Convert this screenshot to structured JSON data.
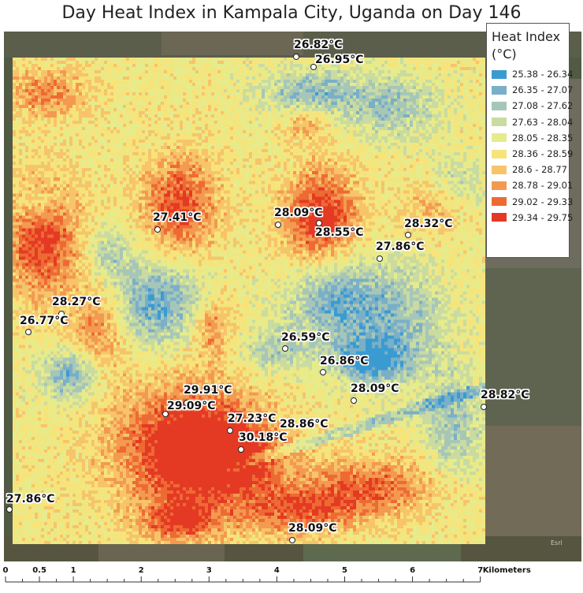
{
  "title": "Day Heat Index in Kampala City, Uganda on Day 146",
  "legend": {
    "title_line1": "Heat Index",
    "title_line2": "(°C)",
    "classes": [
      {
        "label": "25.38 - 26.34",
        "color": "#3a9bd1"
      },
      {
        "label": "26.35 - 27.07",
        "color": "#79afc8"
      },
      {
        "label": "27.08 - 27.62",
        "color": "#a6c6b8"
      },
      {
        "label": "27.63 - 28.04",
        "color": "#c9dba0"
      },
      {
        "label": "28.05 - 28.35",
        "color": "#e6eb8c"
      },
      {
        "label": "28.36 - 28.59",
        "color": "#f6e47b"
      },
      {
        "label": "28.6 - 28.77",
        "color": "#f7c46a"
      },
      {
        "label": "28.78 - 29.01",
        "color": "#f39a50"
      },
      {
        "label": "29.02 - 29.33",
        "color": "#ee6a33"
      },
      {
        "label": "29.34 - 29.75",
        "color": "#e43a24"
      }
    ]
  },
  "points": [
    {
      "label": "26.82°C",
      "value": 26.82
    },
    {
      "label": "26.95°C",
      "value": 26.95
    },
    {
      "label": "27.41°C",
      "value": 27.41
    },
    {
      "label": "28.09°C",
      "value": 28.09
    },
    {
      "label": "28.55°C",
      "value": 28.55
    },
    {
      "label": "28.32°C",
      "value": 28.32
    },
    {
      "label": "27.86°C",
      "value": 27.86
    },
    {
      "label": "28.27°C",
      "value": 28.27
    },
    {
      "label": "26.77°C",
      "value": 26.77
    },
    {
      "label": "26.59°C",
      "value": 26.59
    },
    {
      "label": "26.86°C",
      "value": 26.86
    },
    {
      "label": "28.09°C",
      "value": 28.09
    },
    {
      "label": "28.82°C",
      "value": 28.82
    },
    {
      "label": "29.91°C",
      "value": 29.91
    },
    {
      "label": "29.09°C",
      "value": 29.09
    },
    {
      "label": "27.23°C",
      "value": 27.23
    },
    {
      "label": "28.86°C",
      "value": 28.86
    },
    {
      "label": "30.18°C",
      "value": 30.18
    },
    {
      "label": "27.86°C",
      "value": 27.86
    },
    {
      "label": "28.09°C",
      "value": 28.09
    }
  ],
  "scalebar": {
    "ticks": [
      {
        "label": "0",
        "km": 0
      },
      {
        "label": "0.5",
        "km": 0.5
      },
      {
        "label": "1",
        "km": 1
      },
      {
        "label": "2",
        "km": 2
      },
      {
        "label": "3",
        "km": 3
      },
      {
        "label": "4",
        "km": 4
      },
      {
        "label": "5",
        "km": 5
      },
      {
        "label": "6",
        "km": 6
      },
      {
        "label": "7",
        "km": 7
      }
    ],
    "units": "Kilometers"
  },
  "credit": "Esri"
}
